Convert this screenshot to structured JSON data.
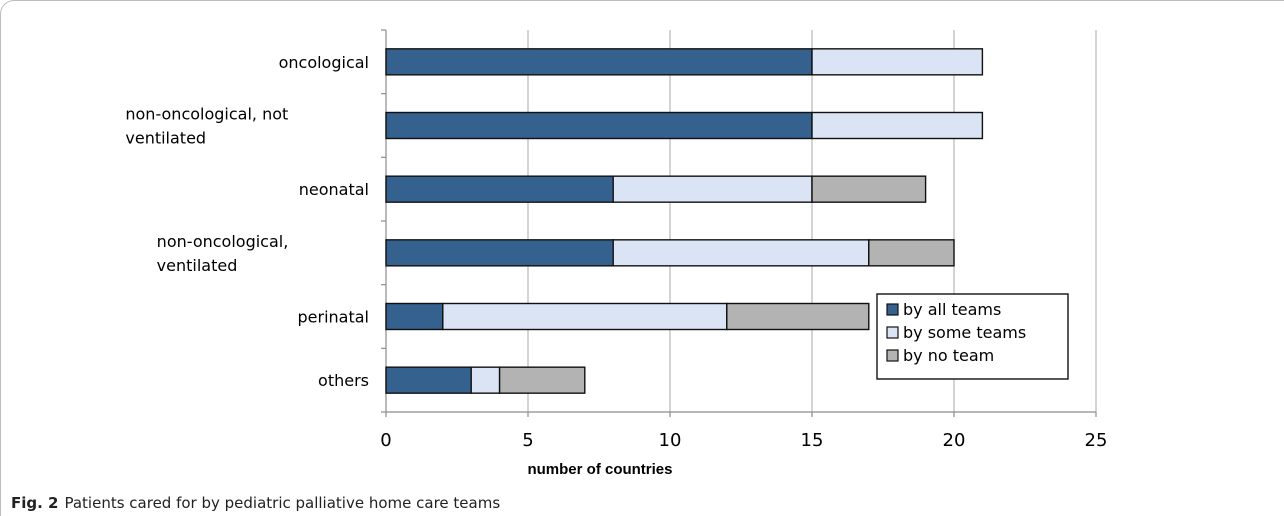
{
  "chart_data": {
    "type": "bar",
    "orientation": "horizontal",
    "stacked": true,
    "categories": [
      "oncological",
      "non-oncological, not ventilated",
      "neonatal",
      "non-oncological, ventilated",
      "perinatal",
      "others"
    ],
    "category_lines": [
      [
        "oncological"
      ],
      [
        "non-oncological, not",
        "ventilated"
      ],
      [
        "neonatal"
      ],
      [
        "non-oncological,",
        "ventilated"
      ],
      [
        "perinatal"
      ],
      [
        "others"
      ]
    ],
    "series": [
      {
        "name": "by all teams",
        "values": [
          15,
          15,
          8,
          8,
          2,
          3
        ],
        "color": "#35618f"
      },
      {
        "name": "by some teams",
        "values": [
          6,
          6,
          7,
          9,
          10,
          1
        ],
        "color": "#dae4f4"
      },
      {
        "name": "by no team",
        "values": [
          0,
          0,
          4,
          3,
          5,
          3
        ],
        "color": "#b3b3b3"
      }
    ],
    "xlabel": "number of countries",
    "xlim": [
      0,
      25
    ],
    "xticks": [
      0,
      5,
      10,
      15,
      20,
      25
    ],
    "grid": "vertical",
    "legend_position": "bottom-right inside"
  },
  "caption": {
    "label": "Fig. 2",
    "text": "Patients cared for by pediatric palliative home care teams"
  }
}
